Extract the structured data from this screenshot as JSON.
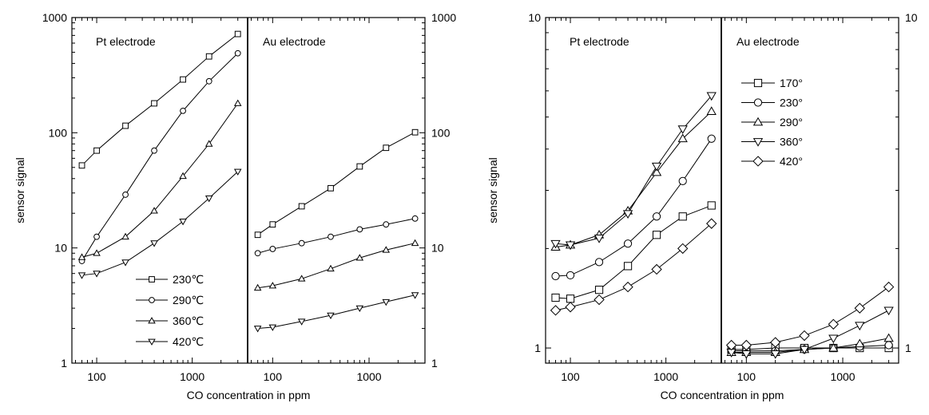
{
  "chart_data": [
    {
      "type": "line",
      "xlabel": "CO concentration in ppm",
      "ylabel": "sensor signal",
      "xscale": "log",
      "yscale": "log",
      "ylim": [
        1,
        1000
      ],
      "y_ticks": [
        "1",
        "10",
        "100",
        "1000"
      ],
      "x_ticks": [
        "100",
        "1000"
      ],
      "grid": false,
      "legend_position": "lower-right of left panel",
      "panels": [
        {
          "label": "Pt electrode",
          "x": [
            70,
            100,
            200,
            400,
            800,
            1500,
            3000
          ],
          "series": [
            {
              "name": "230℃",
              "marker": "square",
              "values": [
                52,
                70,
                115,
                180,
                290,
                460,
                720
              ]
            },
            {
              "name": "290℃",
              "marker": "circle",
              "values": [
                7.7,
                12.5,
                29,
                70,
                155,
                280,
                490
              ]
            },
            {
              "name": "360℃",
              "marker": "triangle-up",
              "values": [
                8.3,
                9,
                12.5,
                21,
                42,
                80,
                180
              ]
            },
            {
              "name": "420℃",
              "marker": "triangle-down",
              "values": [
                5.8,
                6,
                7.5,
                11,
                17,
                27,
                46
              ]
            }
          ]
        },
        {
          "label": "Au electrode",
          "x": [
            70,
            100,
            200,
            400,
            800,
            1500,
            3000
          ],
          "series": [
            {
              "name": "230℃",
              "marker": "square",
              "values": [
                13,
                16,
                23,
                33,
                51,
                74,
                101
              ]
            },
            {
              "name": "290℃",
              "marker": "circle",
              "values": [
                9,
                9.8,
                11,
                12.5,
                14.5,
                16,
                18
              ]
            },
            {
              "name": "360℃",
              "marker": "triangle-up",
              "values": [
                4.5,
                4.7,
                5.4,
                6.6,
                8.2,
                9.6,
                11
              ]
            },
            {
              "name": "420℃",
              "marker": "triangle-down",
              "values": [
                2,
                2.05,
                2.3,
                2.6,
                3,
                3.4,
                3.9
              ]
            }
          ]
        }
      ]
    },
    {
      "type": "line",
      "xlabel": "CO concentration in ppm",
      "ylabel": "sensor signal",
      "xscale": "log",
      "yscale": "log",
      "ylim": [
        1,
        10
      ],
      "y_ticks": [
        "1",
        "10"
      ],
      "x_ticks": [
        "100",
        "1000"
      ],
      "grid": false,
      "legend_position": "upper part of right panel",
      "panels": [
        {
          "label": "Pt electrode",
          "x": [
            70,
            100,
            200,
            400,
            800,
            1500,
            3000
          ],
          "series": [
            {
              "name": "170°",
              "marker": "square",
              "values": [
                1.42,
                1.41,
                1.5,
                1.77,
                2.2,
                2.5,
                2.7
              ]
            },
            {
              "name": "230°",
              "marker": "circle",
              "values": [
                1.65,
                1.66,
                1.82,
                2.07,
                2.5,
                3.2,
                4.3
              ]
            },
            {
              "name": "290°",
              "marker": "triangle-up",
              "values": [
                2.02,
                2.05,
                2.2,
                2.6,
                3.4,
                4.3,
                5.2
              ]
            },
            {
              "name": "360°",
              "marker": "triangle-down",
              "values": [
                2.07,
                2.05,
                2.15,
                2.55,
                3.55,
                4.6,
                5.8
              ]
            },
            {
              "name": "420°",
              "marker": "diamond",
              "values": [
                1.3,
                1.33,
                1.4,
                1.53,
                1.73,
                2.0,
                2.38
              ]
            }
          ]
        },
        {
          "label": "Au electrode",
          "x": [
            70,
            100,
            200,
            400,
            800,
            1500,
            3000
          ],
          "series": [
            {
              "name": "170°",
              "marker": "square",
              "values": [
                0.99,
                0.99,
                1.0,
                1.0,
                1.0,
                1.0,
                1.0
              ]
            },
            {
              "name": "230°",
              "marker": "circle",
              "values": [
                0.98,
                0.98,
                0.98,
                0.99,
                1.0,
                1.01,
                1.02
              ]
            },
            {
              "name": "290°",
              "marker": "triangle-up",
              "values": [
                0.97,
                0.97,
                0.97,
                0.99,
                1.0,
                1.03,
                1.07
              ]
            },
            {
              "name": "360°",
              "marker": "triangle-down",
              "values": [
                0.97,
                0.96,
                0.96,
                0.99,
                1.07,
                1.17,
                1.3
              ]
            },
            {
              "name": "420°",
              "marker": "diamond",
              "values": [
                1.02,
                1.02,
                1.04,
                1.09,
                1.18,
                1.32,
                1.53
              ]
            }
          ]
        }
      ]
    }
  ]
}
